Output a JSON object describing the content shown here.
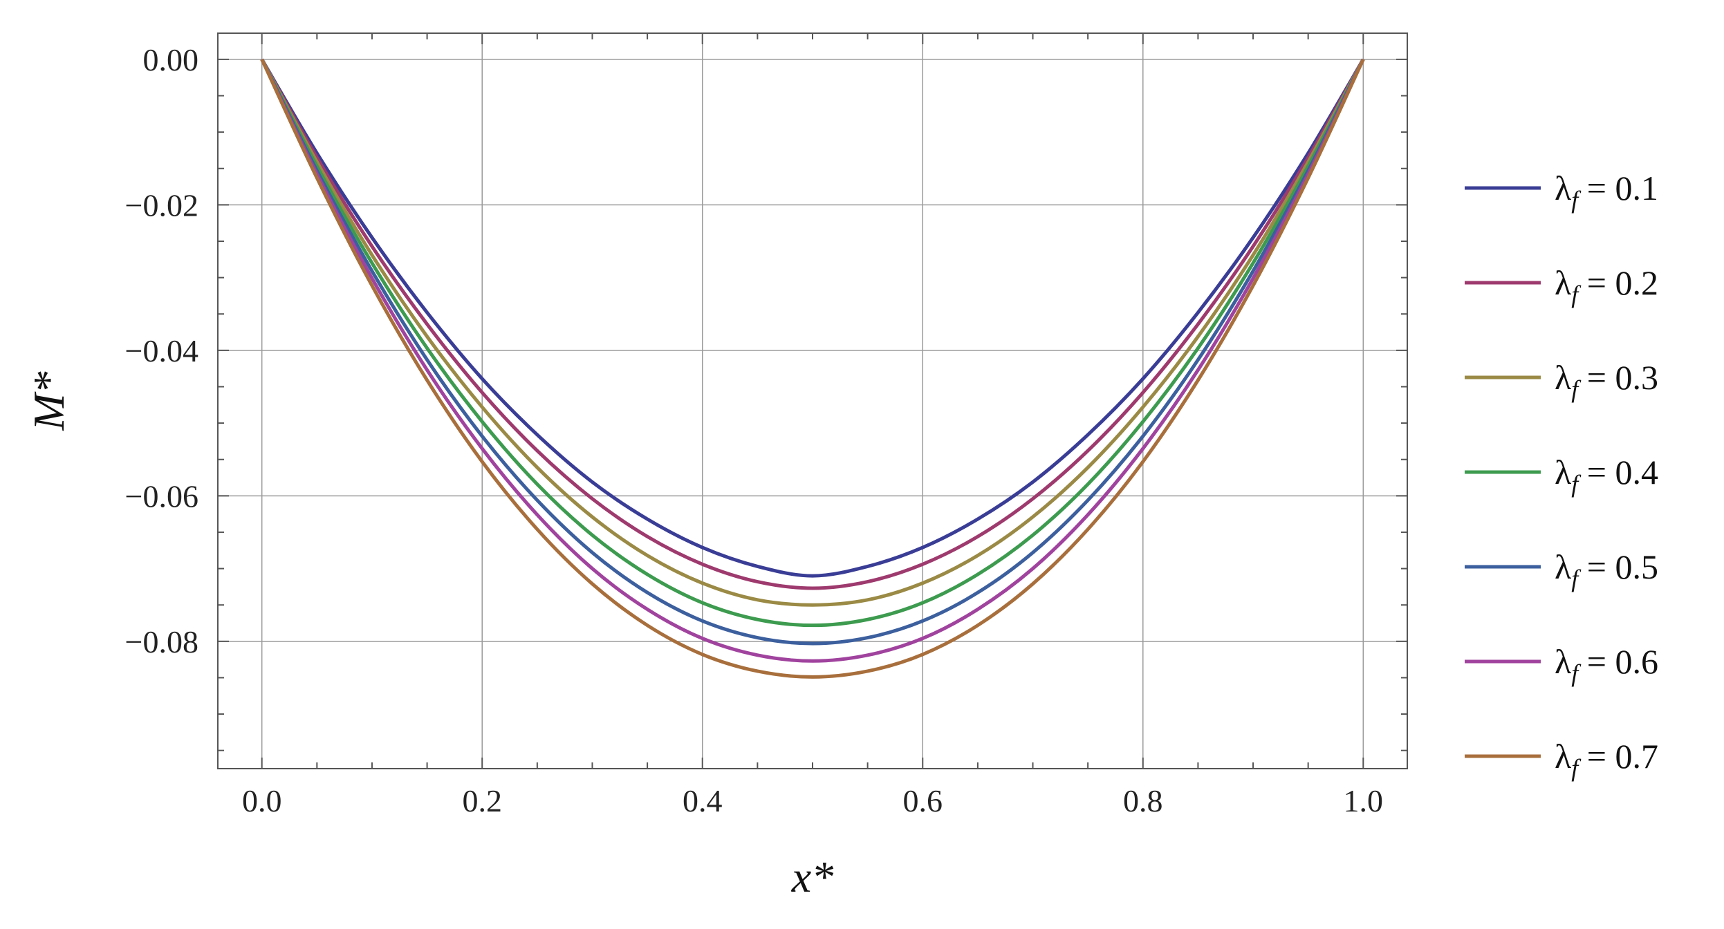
{
  "chart_data": {
    "type": "line",
    "xlabel": "x*",
    "ylabel": "M*",
    "xlim": [
      -0.04,
      1.04
    ],
    "ylim": [
      -0.0975,
      0.0036
    ],
    "x_ticks": [
      0.0,
      0.2,
      0.4,
      0.6,
      0.8,
      1.0
    ],
    "x_tick_labels": [
      "0.0",
      "0.2",
      "0.4",
      "0.6",
      "0.8",
      "1.0"
    ],
    "y_ticks": [
      0.0,
      -0.02,
      -0.04,
      -0.06,
      -0.08
    ],
    "y_tick_labels": [
      "0.00",
      "−0.02",
      "−0.04",
      "−0.06",
      "−0.08"
    ],
    "grid": true,
    "legend_position": "right",
    "x": [
      0.0,
      0.05,
      0.1,
      0.15,
      0.2,
      0.25,
      0.3,
      0.35,
      0.4,
      0.45,
      0.5,
      0.55,
      0.6,
      0.65,
      0.7,
      0.75,
      0.8,
      0.85,
      0.9,
      0.95,
      1.0
    ],
    "series": [
      {
        "name": "λ_f = 0.1",
        "symbol": "λ",
        "subscript": "f",
        "value_text": " = 0.1",
        "color": "#3a3d95",
        "values": [
          0.0,
          -0.0129,
          -0.0245,
          -0.0348,
          -0.0439,
          -0.0516,
          -0.0581,
          -0.0632,
          -0.0671,
          -0.0697,
          -0.071,
          -0.0697,
          -0.0671,
          -0.0632,
          -0.0581,
          -0.0516,
          -0.0439,
          -0.0348,
          -0.0245,
          -0.0129,
          0.0
        ]
      },
      {
        "name": "λ_f = 0.2",
        "symbol": "λ",
        "subscript": "f",
        "value_text": " = 0.2",
        "color": "#9e3a6e",
        "values": [
          0.0,
          -0.0135,
          -0.0257,
          -0.0364,
          -0.0458,
          -0.0538,
          -0.0604,
          -0.0656,
          -0.0694,
          -0.0718,
          -0.0727,
          -0.0718,
          -0.0694,
          -0.0656,
          -0.0604,
          -0.0538,
          -0.0458,
          -0.0364,
          -0.0257,
          -0.0135,
          0.0
        ]
      },
      {
        "name": "λ_f = 0.3",
        "symbol": "λ",
        "subscript": "f",
        "value_text": " = 0.3",
        "color": "#9a8a45",
        "values": [
          0.0,
          -0.0141,
          -0.0269,
          -0.0381,
          -0.0478,
          -0.0561,
          -0.0629,
          -0.0682,
          -0.072,
          -0.0743,
          -0.075,
          -0.0743,
          -0.072,
          -0.0682,
          -0.0629,
          -0.0561,
          -0.0478,
          -0.0381,
          -0.0269,
          -0.0141,
          0.0
        ]
      },
      {
        "name": "λ_f = 0.4",
        "symbol": "λ",
        "subscript": "f",
        "value_text": " = 0.4",
        "color": "#3d9b4f",
        "values": [
          0.0,
          -0.0147,
          -0.028,
          -0.0397,
          -0.0498,
          -0.0584,
          -0.0654,
          -0.0708,
          -0.0747,
          -0.077,
          -0.0778,
          -0.077,
          -0.0747,
          -0.0708,
          -0.0654,
          -0.0584,
          -0.0498,
          -0.0397,
          -0.028,
          -0.0147,
          0.0
        ]
      },
      {
        "name": "λ_f = 0.5",
        "symbol": "λ",
        "subscript": "f",
        "value_text": " = 0.5",
        "color": "#3c5f9e",
        "values": [
          0.0,
          -0.0153,
          -0.0291,
          -0.0413,
          -0.0518,
          -0.0606,
          -0.0678,
          -0.0733,
          -0.0772,
          -0.0795,
          -0.0803,
          -0.0795,
          -0.0772,
          -0.0733,
          -0.0678,
          -0.0606,
          -0.0518,
          -0.0413,
          -0.0291,
          -0.0153,
          0.0
        ]
      },
      {
        "name": "λ_f = 0.6",
        "symbol": "λ",
        "subscript": "f",
        "value_text": " = 0.6",
        "color": "#a0439e",
        "values": [
          0.0,
          -0.0158,
          -0.0301,
          -0.0427,
          -0.0535,
          -0.0626,
          -0.07,
          -0.0756,
          -0.0796,
          -0.0819,
          -0.0827,
          -0.0819,
          -0.0796,
          -0.0756,
          -0.07,
          -0.0626,
          -0.0535,
          -0.0427,
          -0.0301,
          -0.0158,
          0.0
        ]
      },
      {
        "name": "λ_f = 0.7",
        "symbol": "λ",
        "subscript": "f",
        "value_text": " = 0.7",
        "color": "#a86f3c",
        "values": [
          0.0,
          -0.0163,
          -0.0311,
          -0.0441,
          -0.0553,
          -0.0646,
          -0.0721,
          -0.0778,
          -0.0818,
          -0.0841,
          -0.0849,
          -0.0841,
          -0.0818,
          -0.0778,
          -0.0721,
          -0.0646,
          -0.0553,
          -0.0441,
          -0.0311,
          -0.0163,
          0.0
        ]
      }
    ]
  }
}
